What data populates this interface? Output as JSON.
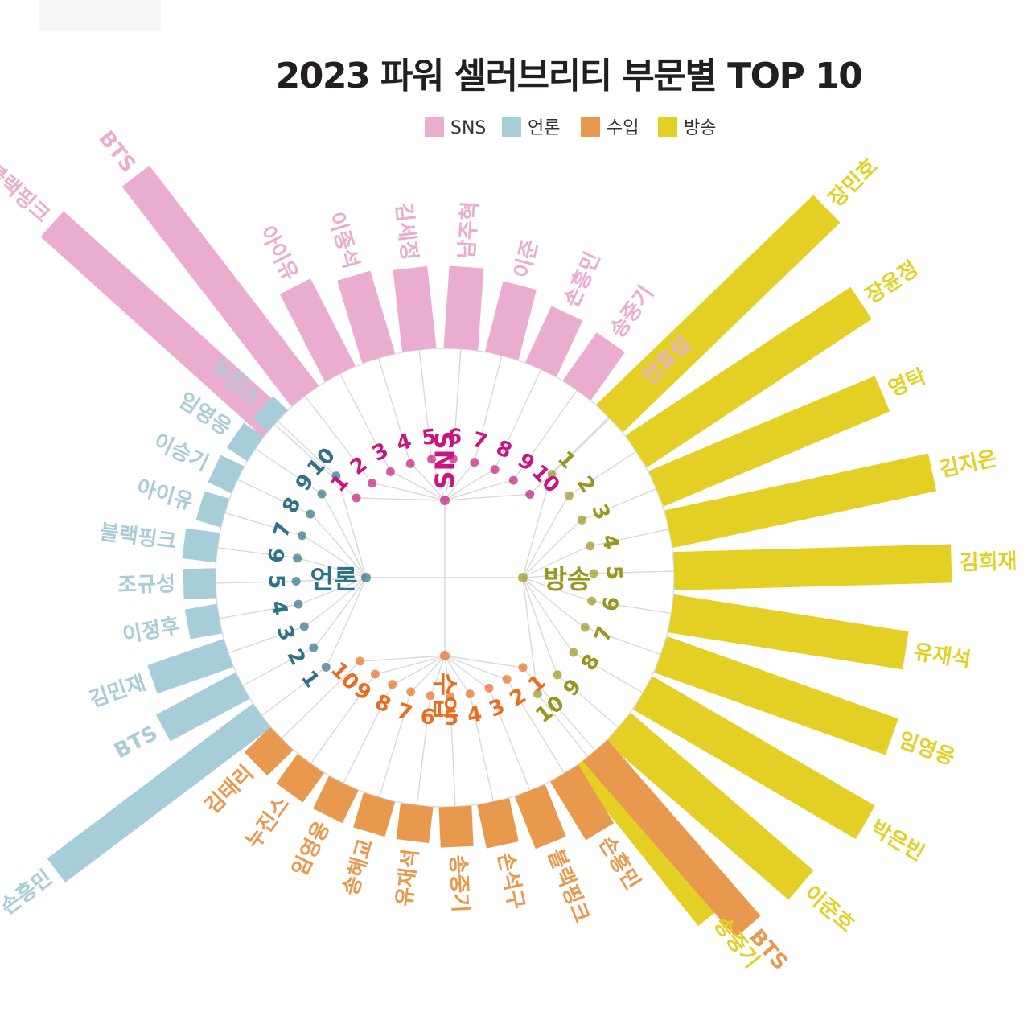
{
  "chart_data": {
    "type": "bar",
    "title": "2023 파워 셀러브리티 부문별 TOP 10",
    "legend": [
      {
        "name": "SNS",
        "color": "#ebadcf"
      },
      {
        "name": "언론",
        "color": "#a7cdd8"
      },
      {
        "name": "수입",
        "color": "#e8994e"
      },
      {
        "name": "방송",
        "color": "#e4d024"
      }
    ],
    "label_colors": {
      "SNS": "#c8157f",
      "언론": "#2e7189",
      "수입": "#ea6c1c",
      "방송": "#99951d"
    },
    "ranks": [
      "1",
      "2",
      "3",
      "4",
      "5",
      "6",
      "7",
      "8",
      "9",
      "10"
    ],
    "series": [
      {
        "name": "SNS",
        "categories": [
          "블랙핑크",
          "BTS",
          "아이유",
          "이종석",
          "김세정",
          "남주혁",
          "이준",
          "손흥민",
          "송중기",
          "안효섭"
        ],
        "values": [
          372,
          345,
          122,
          107,
          102,
          102,
          90,
          77,
          73,
          55
        ]
      },
      {
        "name": "방송",
        "categories": [
          "장민호",
          "장윤정",
          "영탁",
          "김지은",
          "김희재",
          "유재석",
          "임영웅",
          "박은빈",
          "이준호",
          "송중기"
        ],
        "values": [
          375,
          335,
          305,
          335,
          345,
          295,
          305,
          320,
          300,
          250
        ]
      },
      {
        "name": "수입",
        "categories": [
          "BTS",
          "손흥민",
          "블랙핑크",
          "손석구",
          "송중기",
          "유재석",
          "송혜교",
          "임영웅",
          "누진스",
          "김태리"
        ],
        "values": [
          290,
          85,
          70,
          55,
          50,
          45,
          45,
          45,
          45,
          45
        ]
      },
      {
        "name": "언론",
        "categories": [
          "손흥민",
          "BTS",
          "김민재",
          "이정후",
          "조규성",
          "블랙핑크",
          "아이유",
          "이승기",
          "임영웅",
          "뉴진스"
        ],
        "values": [
          320,
          112,
          100,
          40,
          40,
          42,
          32,
          32,
          30,
          25
        ]
      }
    ]
  }
}
